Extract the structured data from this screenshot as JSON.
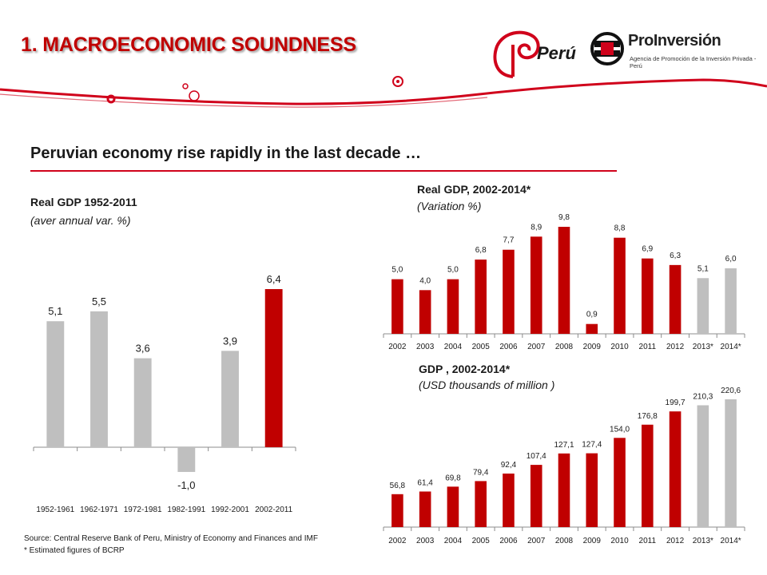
{
  "header": {
    "title": "1. MACROECONOMIC SOUNDNESS",
    "logo_peru_text": "Perú",
    "logo_pi_name": "ProInversión",
    "logo_pi_tagline": "Agencia de Promoción de la Inversión Privada - Perú"
  },
  "headline": "Peruvian economy rise rapidly in the last decade …",
  "colors": {
    "accent": "#c00000",
    "grey_bar": "#bfbfbf",
    "rule": "#d0021b"
  },
  "footer": {
    "source": "Source: Central Reserve Bank of Peru, Ministry of Economy and Finances and IMF",
    "note": "* Estimated  figures of BCRP"
  },
  "chart_data": [
    {
      "type": "bar",
      "title": "Real GDP 1952-2011",
      "subtitle": "(aver annual var. %)",
      "categories": [
        "1952-1961",
        "1962-1971",
        "1972-1981",
        "1982-1991",
        "1992-2001",
        "2002-2011"
      ],
      "values": [
        5.1,
        5.5,
        3.6,
        -1.0,
        3.9,
        6.4
      ],
      "labels": [
        "5,1",
        "5,5",
        "3,6",
        "-1,0",
        "3,9",
        "6,4"
      ],
      "bar_colors": [
        "#bfbfbf",
        "#bfbfbf",
        "#bfbfbf",
        "#bfbfbf",
        "#bfbfbf",
        "#c00000"
      ],
      "grid": false
    },
    {
      "type": "bar",
      "title": "Real GDP, 2002-2014*",
      "subtitle": "(Variation %)",
      "categories": [
        "2002",
        "2003",
        "2004",
        "2005",
        "2006",
        "2007",
        "2008",
        "2009",
        "2010",
        "2011",
        "2012",
        "2013*",
        "2014*"
      ],
      "values": [
        5.0,
        4.0,
        5.0,
        6.8,
        7.7,
        8.9,
        9.8,
        0.9,
        8.8,
        6.9,
        6.3,
        5.1,
        6.0
      ],
      "labels": [
        "5,0",
        "4,0",
        "5,0",
        "6,8",
        "7,7",
        "8,9",
        "9,8",
        "0,9",
        "8,8",
        "6,9",
        "6,3",
        "5,1",
        "6,0"
      ],
      "bar_colors": [
        "#c00000",
        "#c00000",
        "#c00000",
        "#c00000",
        "#c00000",
        "#c00000",
        "#c00000",
        "#c00000",
        "#c00000",
        "#c00000",
        "#c00000",
        "#bfbfbf",
        "#bfbfbf"
      ],
      "grid": false
    },
    {
      "type": "bar",
      "title": "GDP , 2002-2014*",
      "subtitle": "(USD thousands of million )",
      "categories": [
        "2002",
        "2003",
        "2004",
        "2005",
        "2006",
        "2007",
        "2008",
        "2009",
        "2010",
        "2011",
        "2012",
        "2013*",
        "2014*"
      ],
      "values": [
        56.8,
        61.4,
        69.8,
        79.4,
        92.4,
        107.4,
        127.1,
        127.4,
        154.0,
        176.8,
        199.7,
        210.3,
        220.6
      ],
      "labels": [
        "56,8",
        "61,4",
        "69,8",
        "79,4",
        "92,4",
        "107,4",
        "127,1",
        "127,4",
        "154,0",
        "176,8",
        "199,7",
        "210,3",
        "220,6"
      ],
      "bar_colors": [
        "#c00000",
        "#c00000",
        "#c00000",
        "#c00000",
        "#c00000",
        "#c00000",
        "#c00000",
        "#c00000",
        "#c00000",
        "#c00000",
        "#c00000",
        "#bfbfbf",
        "#bfbfbf"
      ],
      "grid": false
    }
  ]
}
